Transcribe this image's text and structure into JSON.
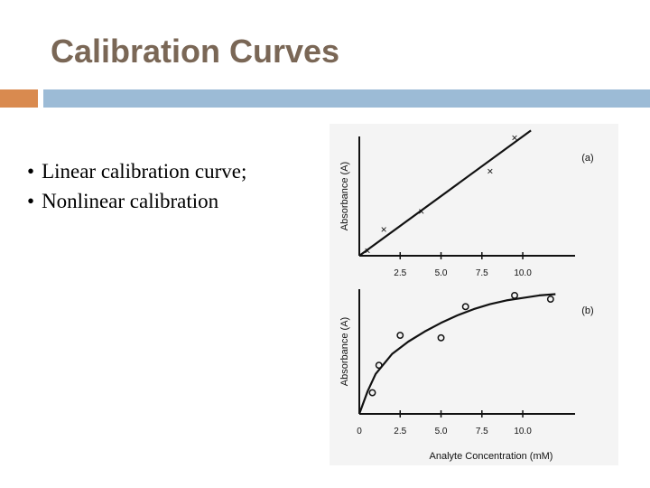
{
  "slide": {
    "title": "Calibration Curves",
    "accent_color": "#d98a4f",
    "bar_color": "#9cbbd6",
    "title_color": "#7a6756",
    "bullets": [
      "Linear calibration curve;",
      "Nonlinear calibration"
    ]
  },
  "chart_data": [
    {
      "type": "line",
      "panel_label": "(a)",
      "ylabel": "Absorbance (A)",
      "xlabel": "",
      "x_ticks": [
        "2.5",
        "5.0",
        "7.5",
        "10.0"
      ],
      "tick_values": [
        2.5,
        5.0,
        7.5,
        10.0
      ],
      "xlim": [
        0,
        13.2
      ],
      "ylim": [
        0,
        1.0
      ],
      "marker": "x",
      "series": [
        {
          "x": [
            0.5,
            1.5,
            3.8,
            8.0,
            9.5
          ],
          "y": [
            0.04,
            0.22,
            0.37,
            0.71,
            0.99
          ]
        }
      ],
      "fit": {
        "kind": "linear",
        "x": [
          0,
          10.5
        ],
        "y": [
          0.0,
          1.05
        ]
      }
    },
    {
      "type": "line",
      "panel_label": "(b)",
      "ylabel": "Absorbance (A)",
      "xlabel": "Analyte Concentration (mM)",
      "origin_label": "0",
      "x_ticks": [
        "2.5",
        "5.0",
        "7.5",
        "10.0"
      ],
      "tick_values": [
        2.5,
        5.0,
        7.5,
        10.0
      ],
      "xlim": [
        0,
        13.2
      ],
      "ylim": [
        0,
        1.0
      ],
      "marker": "o",
      "series": [
        {
          "x": [
            0.8,
            1.2,
            2.5,
            5.0,
            6.5,
            9.5,
            11.7
          ],
          "y": [
            0.17,
            0.39,
            0.63,
            0.61,
            0.86,
            0.95,
            0.92
          ]
        }
      ],
      "fit": {
        "kind": "curve",
        "x": [
          0,
          0.5,
          1,
          2,
          3,
          4,
          5,
          6,
          7,
          8,
          9,
          10,
          11,
          12
        ],
        "y": [
          0.0,
          0.18,
          0.32,
          0.48,
          0.58,
          0.66,
          0.73,
          0.79,
          0.84,
          0.88,
          0.91,
          0.93,
          0.95,
          0.96
        ]
      }
    }
  ]
}
